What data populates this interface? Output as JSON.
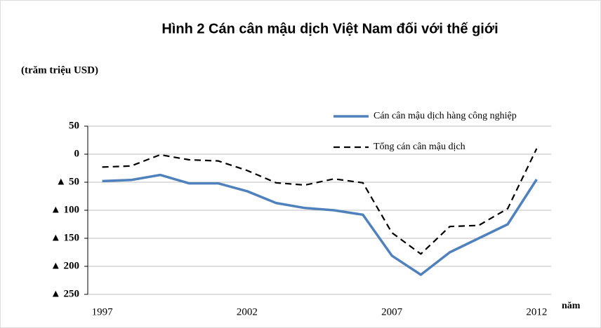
{
  "chart_data": {
    "type": "line",
    "title": "Hình 2  Cán cân mậu dịch Việt Nam đối với thế giới",
    "y_label": "(trăm triệu USD)",
    "x_label": "năm",
    "x": [
      1997,
      1998,
      1999,
      2000,
      2001,
      2002,
      2003,
      2004,
      2005,
      2006,
      2007,
      2008,
      2009,
      2010,
      2011,
      2012
    ],
    "xlim": [
      1996.5,
      2012.5
    ],
    "xticks": [
      1997,
      2002,
      2007,
      2012
    ],
    "ylim": [
      -250,
      50
    ],
    "yticks": [
      50,
      0,
      {
        "value": -50,
        "label": "▲ 50"
      },
      {
        "value": -100,
        "label": "▲ 100"
      },
      {
        "value": -150,
        "label": "▲ 150"
      },
      {
        "value": -200,
        "label": "▲ 200"
      },
      {
        "value": -250,
        "label": "▲ 250"
      }
    ],
    "grid": true,
    "legend": "upper right",
    "series": [
      {
        "name": "Cán cân mậu dịch hàng công nghiệp",
        "color": "#4f81bd",
        "style": "solid",
        "values": [
          -48,
          -46,
          -37,
          -52,
          -52,
          -66,
          -87,
          -96,
          -100,
          -108,
          -181,
          -215,
          -175,
          -150,
          -125,
          -45
        ]
      },
      {
        "name": "Tổng cán cân mậu dịch",
        "color": "#000000",
        "style": "dashed",
        "values": [
          -23,
          -21,
          -1,
          -10,
          -12,
          -29,
          -51,
          -55,
          -44,
          -51,
          -140,
          -178,
          -129,
          -127,
          -97,
          10
        ]
      }
    ]
  }
}
